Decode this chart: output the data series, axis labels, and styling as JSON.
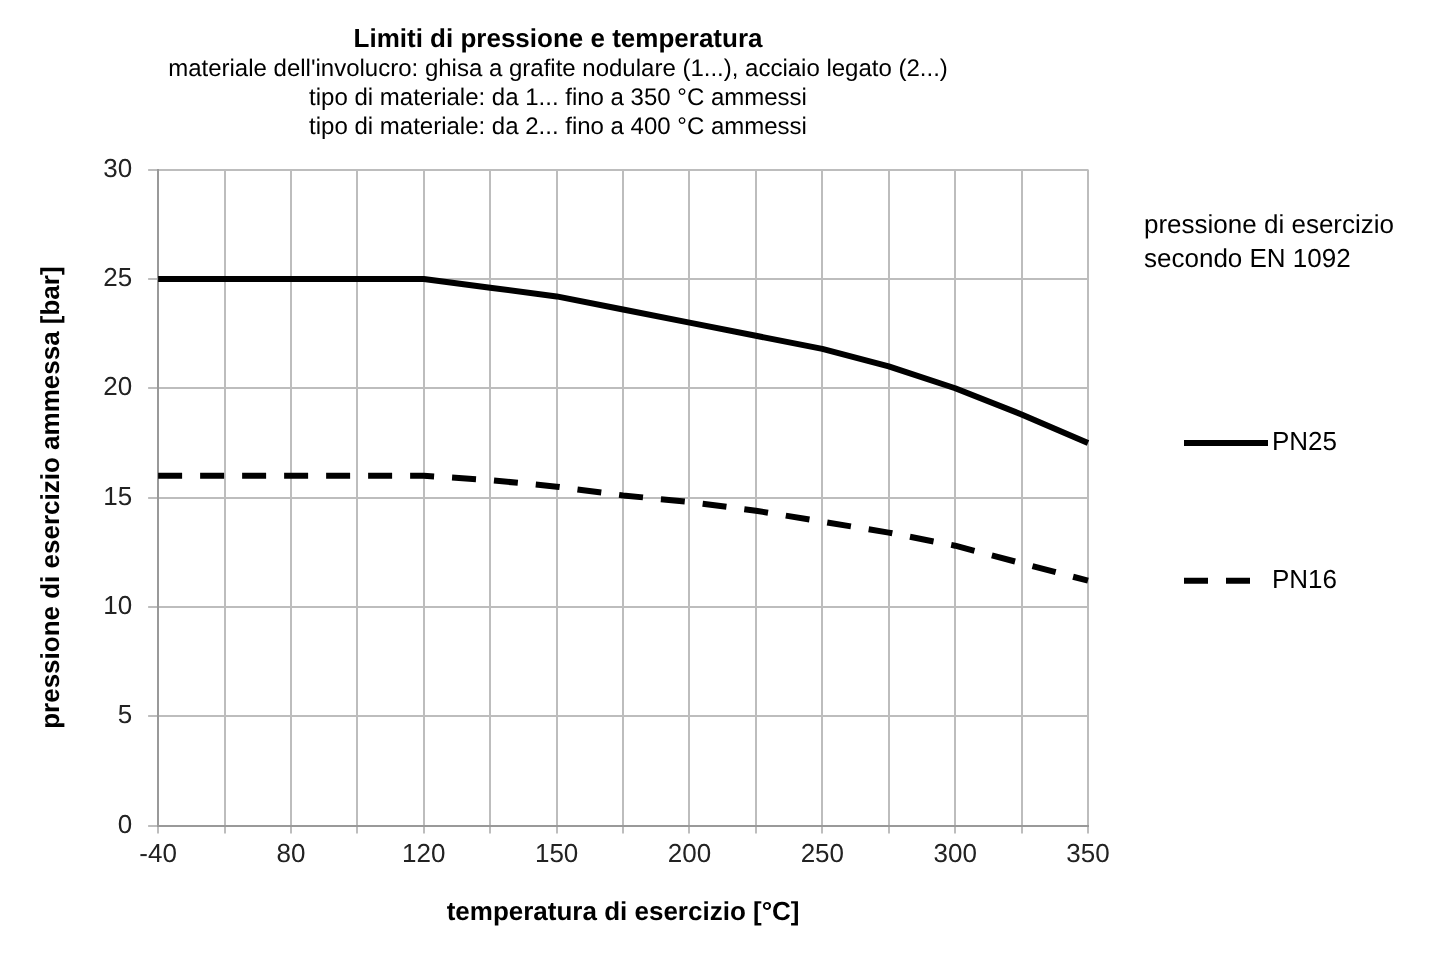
{
  "chart_data": {
    "type": "line",
    "title": "Limiti di pressione e temperatura",
    "subtitle": "materiale dell'involucro: ghisa a grafite nodulare (1...), acciaio legato (2...)\ntipo di materiale: da 1... fino a 350 °C ammessi\ntipo di materiale: da 2... fino a 400 °C ammessi",
    "xlabel": "temperatura di esercizio [°C]",
    "ylabel": "pressione di esercizio ammessa [bar]",
    "legend_title": "pressione di esercizio\nsecondo EN 1092",
    "categories": [
      "-40",
      null,
      "80",
      null,
      "120",
      null,
      "150",
      null,
      "200",
      null,
      "250",
      null,
      "300",
      null,
      "350"
    ],
    "series": [
      {
        "name": "PN25",
        "color": "#000000",
        "line_style": "solid",
        "values": [
          25,
          25,
          25,
          25,
          25,
          24.6,
          24.2,
          23.6,
          23,
          22.4,
          21.8,
          21,
          20,
          18.8,
          17.5
        ]
      },
      {
        "name": "PN16",
        "color": "#000000",
        "line_style": "dashed",
        "values": [
          16,
          16,
          16,
          16,
          16,
          15.8,
          15.5,
          15.1,
          14.8,
          14.4,
          13.9,
          13.4,
          12.8,
          12,
          11.2
        ]
      }
    ],
    "ylim": [
      0,
      30
    ],
    "yticks": [
      0,
      5,
      10,
      15,
      20,
      25,
      30
    ],
    "grid": true,
    "legend": "right",
    "marker": "none"
  }
}
